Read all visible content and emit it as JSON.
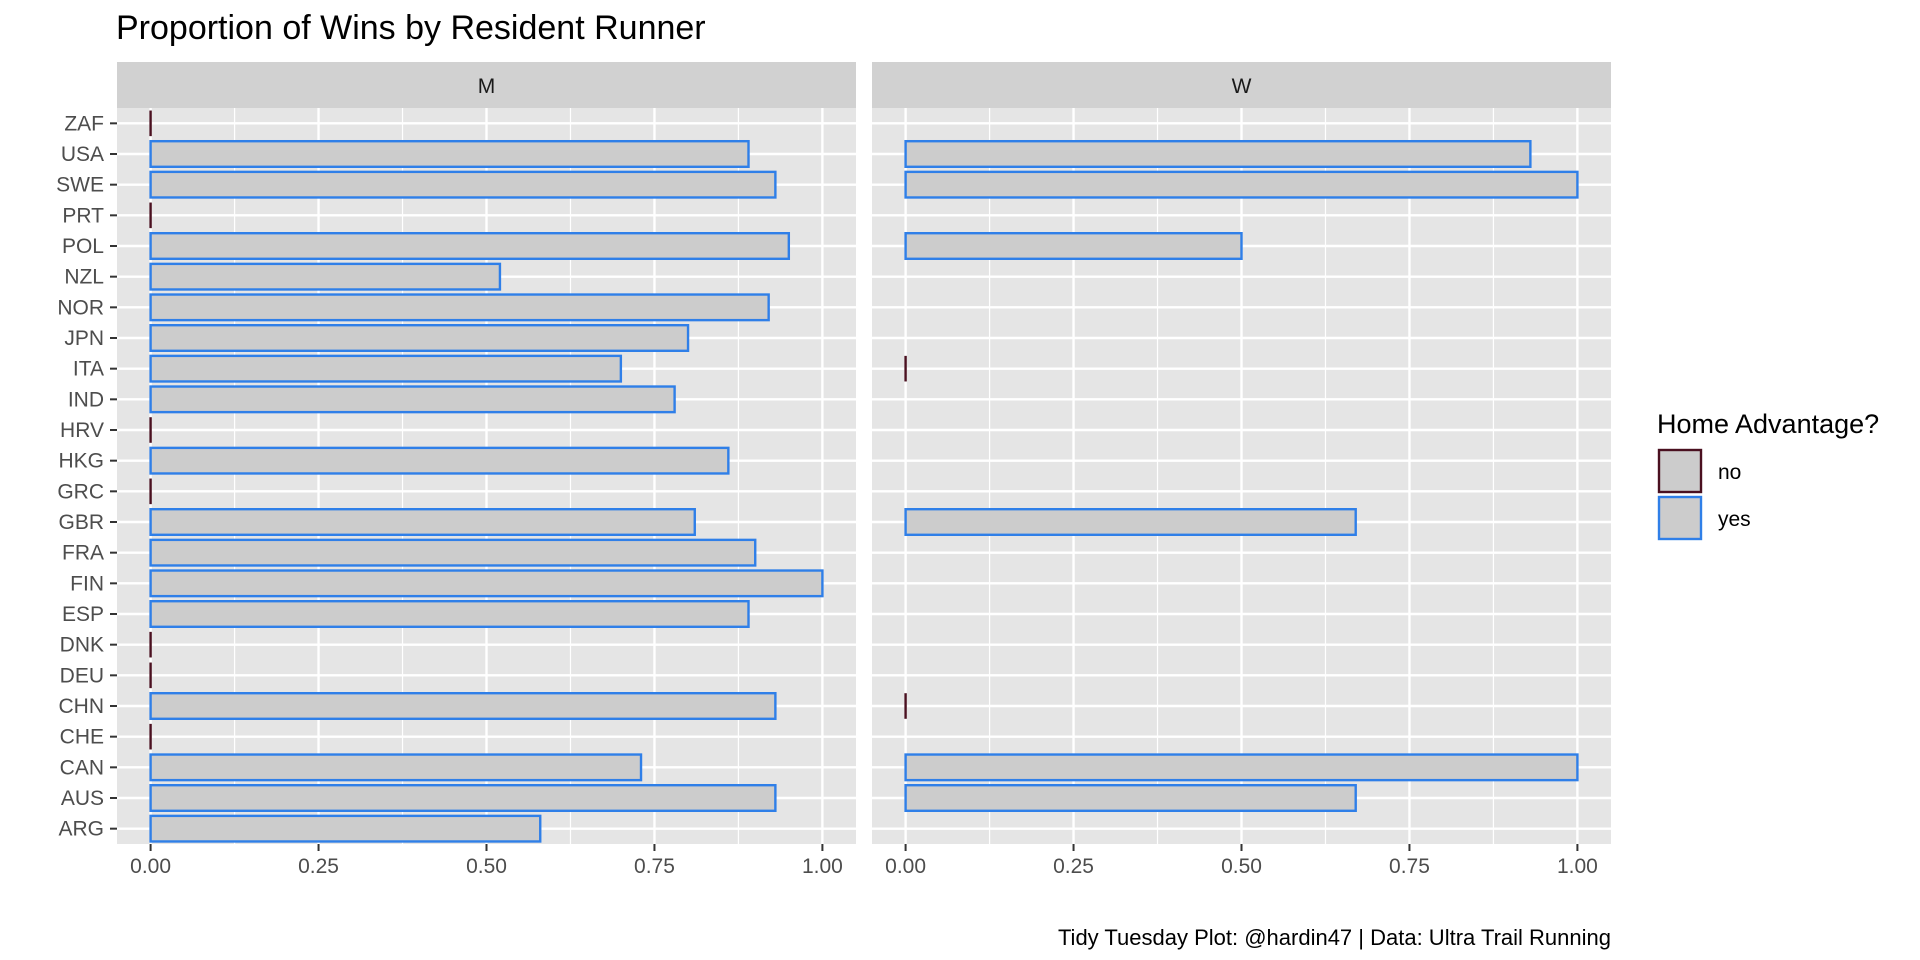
{
  "chart_data": {
    "type": "bar",
    "orientation": "horizontal",
    "title": "Proportion of Wins by Resident Runner",
    "caption": "Tidy Tuesday Plot: @hardin47 | Data: Ultra Trail Running",
    "xlabel": "",
    "ylabel": "",
    "xlim": [
      -0.05,
      1.05
    ],
    "x_ticks": [
      "0.00",
      "0.25",
      "0.50",
      "0.75",
      "1.00"
    ],
    "x_tick_values": [
      0,
      0.25,
      0.5,
      0.75,
      1.0
    ],
    "grid": true,
    "categories": [
      "ARG",
      "AUS",
      "CAN",
      "CHE",
      "CHN",
      "DEU",
      "DNK",
      "ESP",
      "FIN",
      "FRA",
      "GBR",
      "GRC",
      "HKG",
      "HRV",
      "IND",
      "ITA",
      "JPN",
      "NOR",
      "NZL",
      "POL",
      "PRT",
      "SWE",
      "USA",
      "ZAF"
    ],
    "facets": [
      {
        "name": "M",
        "values": {
          "ARG": {
            "value": 0.58,
            "home": "yes"
          },
          "AUS": {
            "value": 0.93,
            "home": "yes"
          },
          "CAN": {
            "value": 0.73,
            "home": "yes"
          },
          "CHE": {
            "value": 0.0,
            "home": "no"
          },
          "CHN": {
            "value": 0.93,
            "home": "yes"
          },
          "DEU": {
            "value": 0.0,
            "home": "no"
          },
          "DNK": {
            "value": 0.0,
            "home": "no"
          },
          "ESP": {
            "value": 0.89,
            "home": "yes"
          },
          "FIN": {
            "value": 1.0,
            "home": "yes"
          },
          "FRA": {
            "value": 0.9,
            "home": "yes"
          },
          "GBR": {
            "value": 0.81,
            "home": "yes"
          },
          "GRC": {
            "value": 0.0,
            "home": "no"
          },
          "HKG": {
            "value": 0.86,
            "home": "yes"
          },
          "HRV": {
            "value": 0.0,
            "home": "no"
          },
          "IND": {
            "value": 0.78,
            "home": "yes"
          },
          "ITA": {
            "value": 0.7,
            "home": "yes"
          },
          "JPN": {
            "value": 0.8,
            "home": "yes"
          },
          "NOR": {
            "value": 0.92,
            "home": "yes"
          },
          "NZL": {
            "value": 0.52,
            "home": "yes"
          },
          "POL": {
            "value": 0.95,
            "home": "yes"
          },
          "PRT": {
            "value": 0.0,
            "home": "no"
          },
          "SWE": {
            "value": 0.93,
            "home": "yes"
          },
          "USA": {
            "value": 0.89,
            "home": "yes"
          },
          "ZAF": {
            "value": 0.0,
            "home": "no"
          }
        }
      },
      {
        "name": "W",
        "values": {
          "AUS": {
            "value": 0.67,
            "home": "yes"
          },
          "CAN": {
            "value": 1.0,
            "home": "yes"
          },
          "CHN": {
            "value": 0.0,
            "home": "no"
          },
          "GBR": {
            "value": 0.67,
            "home": "yes"
          },
          "ITA": {
            "value": 0.0,
            "home": "no"
          },
          "POL": {
            "value": 0.5,
            "home": "yes"
          },
          "SWE": {
            "value": 1.0,
            "home": "yes"
          },
          "USA": {
            "value": 0.93,
            "home": "yes"
          }
        }
      }
    ],
    "legend": {
      "title": "Home Advantage?",
      "placement": "right",
      "items": [
        {
          "label": "no",
          "key": "no",
          "color": "#4a1020"
        },
        {
          "label": "yes",
          "key": "yes",
          "color": "#2f7fe8"
        }
      ]
    },
    "colors": {
      "bar_fill": "#cccccc",
      "panel_bg": "#e5e5e5",
      "strip_bg": "#d1d1d1",
      "grid": "#ffffff"
    }
  }
}
